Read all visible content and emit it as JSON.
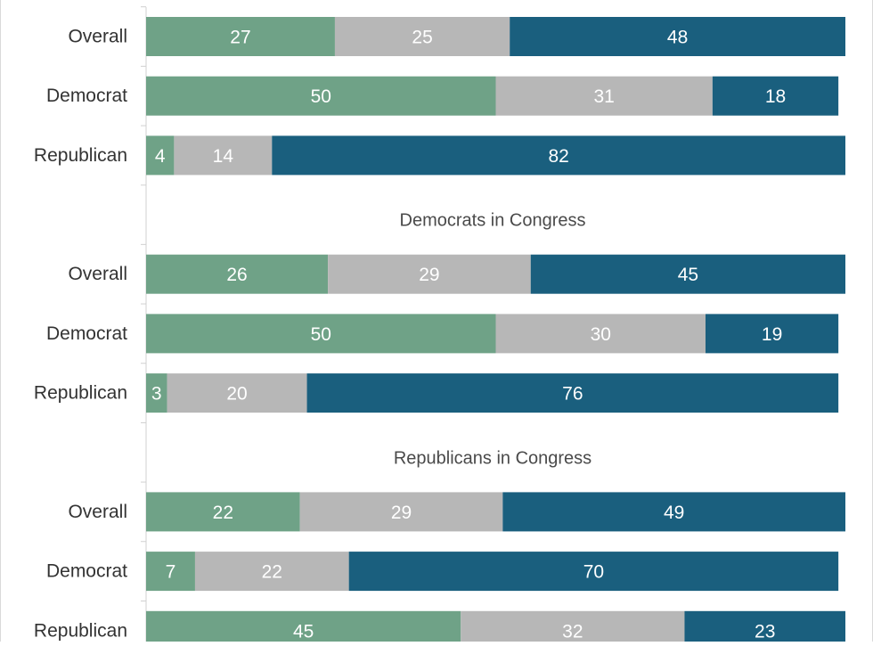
{
  "chart_data": {
    "type": "bar",
    "orientation": "horizontal",
    "stacked": true,
    "xlim": [
      0,
      100
    ],
    "grid": false,
    "legend": "none",
    "colors": [
      "#6fa287",
      "#b7b7b7",
      "#1a5f7e"
    ],
    "panels": [
      {
        "title": "",
        "categories": [
          "Overall",
          "Democrat",
          "Republican"
        ],
        "segments": [
          [
            27,
            25,
            48
          ],
          [
            50,
            31,
            18
          ],
          [
            4,
            14,
            82
          ]
        ]
      },
      {
        "title": "Democrats in Congress",
        "categories": [
          "Overall",
          "Democrat",
          "Republican"
        ],
        "segments": [
          [
            26,
            29,
            45
          ],
          [
            50,
            30,
            19
          ],
          [
            3,
            20,
            76
          ]
        ]
      },
      {
        "title": "Republicans in Congress",
        "categories": [
          "Overall",
          "Democrat",
          "Republican"
        ],
        "segments": [
          [
            22,
            29,
            49
          ],
          [
            7,
            22,
            70
          ],
          [
            45,
            32,
            23
          ]
        ]
      }
    ]
  }
}
